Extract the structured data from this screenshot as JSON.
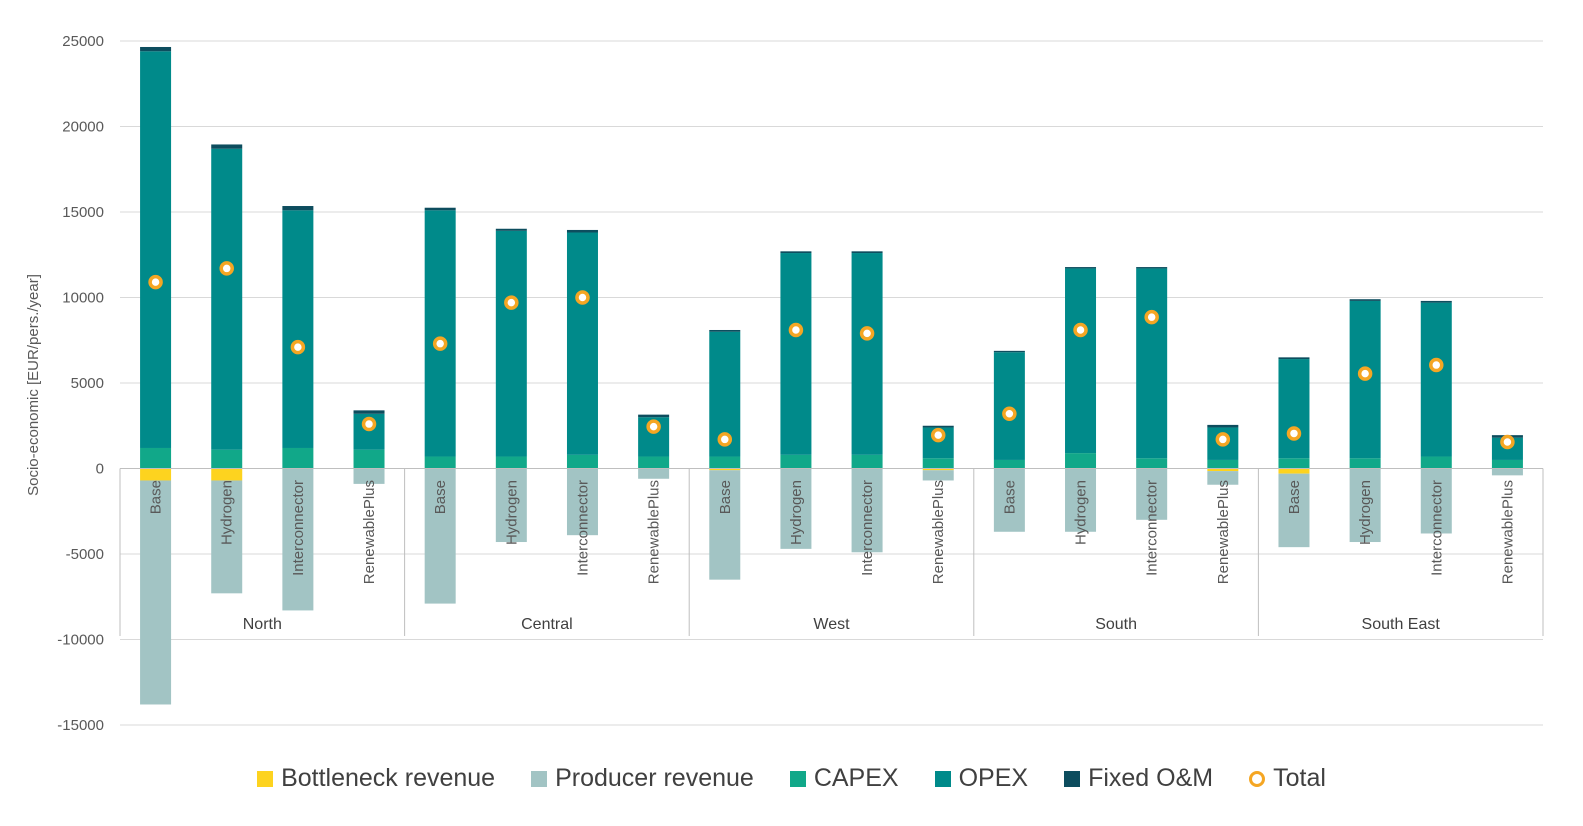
{
  "chart_data": {
    "type": "bar",
    "stacked": true,
    "ylabel": "Socio-economic [EUR/pers./year]",
    "ylim": [
      -15000,
      25000
    ],
    "yticks": [
      25000,
      20000,
      15000,
      10000,
      5000,
      0,
      -5000,
      -10000,
      -15000
    ],
    "grid": true,
    "legend_position": "bottom",
    "groups": [
      {
        "name": "North",
        "categories": [
          "Base",
          "Hydrogen",
          "Interconnector",
          "RenewablePlus"
        ]
      },
      {
        "name": "Central",
        "categories": [
          "Base",
          "Hydrogen",
          "Interconnector",
          "RenewablePlus"
        ]
      },
      {
        "name": "West",
        "categories": [
          "Base",
          "Hydrogen",
          "Interconnector",
          "RenewablePlus"
        ]
      },
      {
        "name": "South",
        "categories": [
          "Base",
          "Hydrogen",
          "Interconnector",
          "RenewablePlus"
        ]
      },
      {
        "name": "South East",
        "categories": [
          "Base",
          "Hydrogen",
          "Interconnector",
          "RenewablePlus"
        ]
      }
    ],
    "series": [
      {
        "name": "Bottleneck revenue",
        "color": "#fdd31f",
        "values": [
          -700,
          -700,
          0,
          0,
          0,
          0,
          0,
          0,
          -100,
          0,
          0,
          -100,
          0,
          0,
          0,
          -150,
          -300,
          0,
          0,
          0
        ]
      },
      {
        "name": "Producer revenue",
        "color": "#a2c4c4",
        "values": [
          -13100,
          -6600,
          -8300,
          -900,
          -7900,
          -4300,
          -3900,
          -600,
          -6400,
          -4700,
          -4900,
          -600,
          -3700,
          -3700,
          -3000,
          -800,
          -4300,
          -4300,
          -3800,
          -400
        ]
      },
      {
        "name": "CAPEX",
        "color": "#11a889",
        "values": [
          1200,
          1100,
          1200,
          1100,
          700,
          700,
          800,
          700,
          700,
          800,
          800,
          600,
          500,
          900,
          600,
          500,
          600,
          600,
          700,
          500
        ]
      },
      {
        "name": "OPEX",
        "color": "#008a8a",
        "values": [
          23200,
          17600,
          13900,
          2100,
          14400,
          13200,
          13000,
          2300,
          7300,
          11800,
          11800,
          1800,
          6300,
          10800,
          11100,
          1900,
          5800,
          9200,
          9000,
          1300
        ]
      },
      {
        "name": "Fixed O&M",
        "color": "#0d4d5e",
        "values": [
          250,
          250,
          250,
          200,
          150,
          120,
          150,
          150,
          100,
          100,
          100,
          100,
          80,
          80,
          80,
          150,
          100,
          100,
          100,
          150
        ]
      }
    ],
    "total": {
      "name": "Total",
      "color": "#f5a623",
      "values": [
        10900,
        11700,
        7100,
        2600,
        7300,
        9700,
        10000,
        2450,
        1700,
        8100,
        7900,
        1950,
        3200,
        8100,
        8850,
        1700,
        2050,
        5550,
        6050,
        1550
      ]
    }
  }
}
